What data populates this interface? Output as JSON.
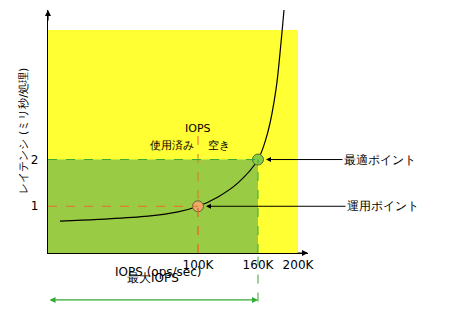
{
  "chart_data": {
    "type": "line",
    "x_label": "IOPS (ops/sec)",
    "y_label": "レイテンシ (ミリ秒/処理)",
    "x": [
      -38000,
      0,
      50000,
      80000,
      100000,
      120000,
      140000,
      160000,
      170000,
      178000,
      183000,
      186000
    ],
    "values": [
      0.68,
      0.72,
      0.79,
      0.88,
      1.0,
      1.2,
      1.5,
      2.0,
      2.6,
      3.5,
      4.5,
      5.2
    ],
    "color": "#000000",
    "xlim": [
      -50000,
      210000
    ],
    "ylim": [
      0,
      5.2
    ],
    "xticks": [
      {
        "value": 100000,
        "label": "100K"
      },
      {
        "value": 160000,
        "label": "160K"
      },
      {
        "value": 200000,
        "label": "200K"
      }
    ],
    "yticks": [
      1,
      2
    ],
    "grid": false,
    "areas": [
      {
        "x": [
          -50000,
          200000
        ],
        "y": [
          0,
          4.77
        ],
        "color": "#ffff33"
      },
      {
        "x": [
          -50000,
          160000
        ],
        "y": [
          0,
          2
        ],
        "color": "#99cc44"
      }
    ],
    "points": [
      {
        "name": "運用ポイント",
        "x": 100000,
        "y": 1,
        "color": "#f0a868"
      },
      {
        "name": "最適ポイント",
        "x": 160000,
        "y": 2,
        "color": "#88cc44"
      }
    ],
    "annotations": {
      "iops": "IOPS",
      "used": "使用済み",
      "free": "空き",
      "max_iops": "最大IOPS"
    }
  }
}
